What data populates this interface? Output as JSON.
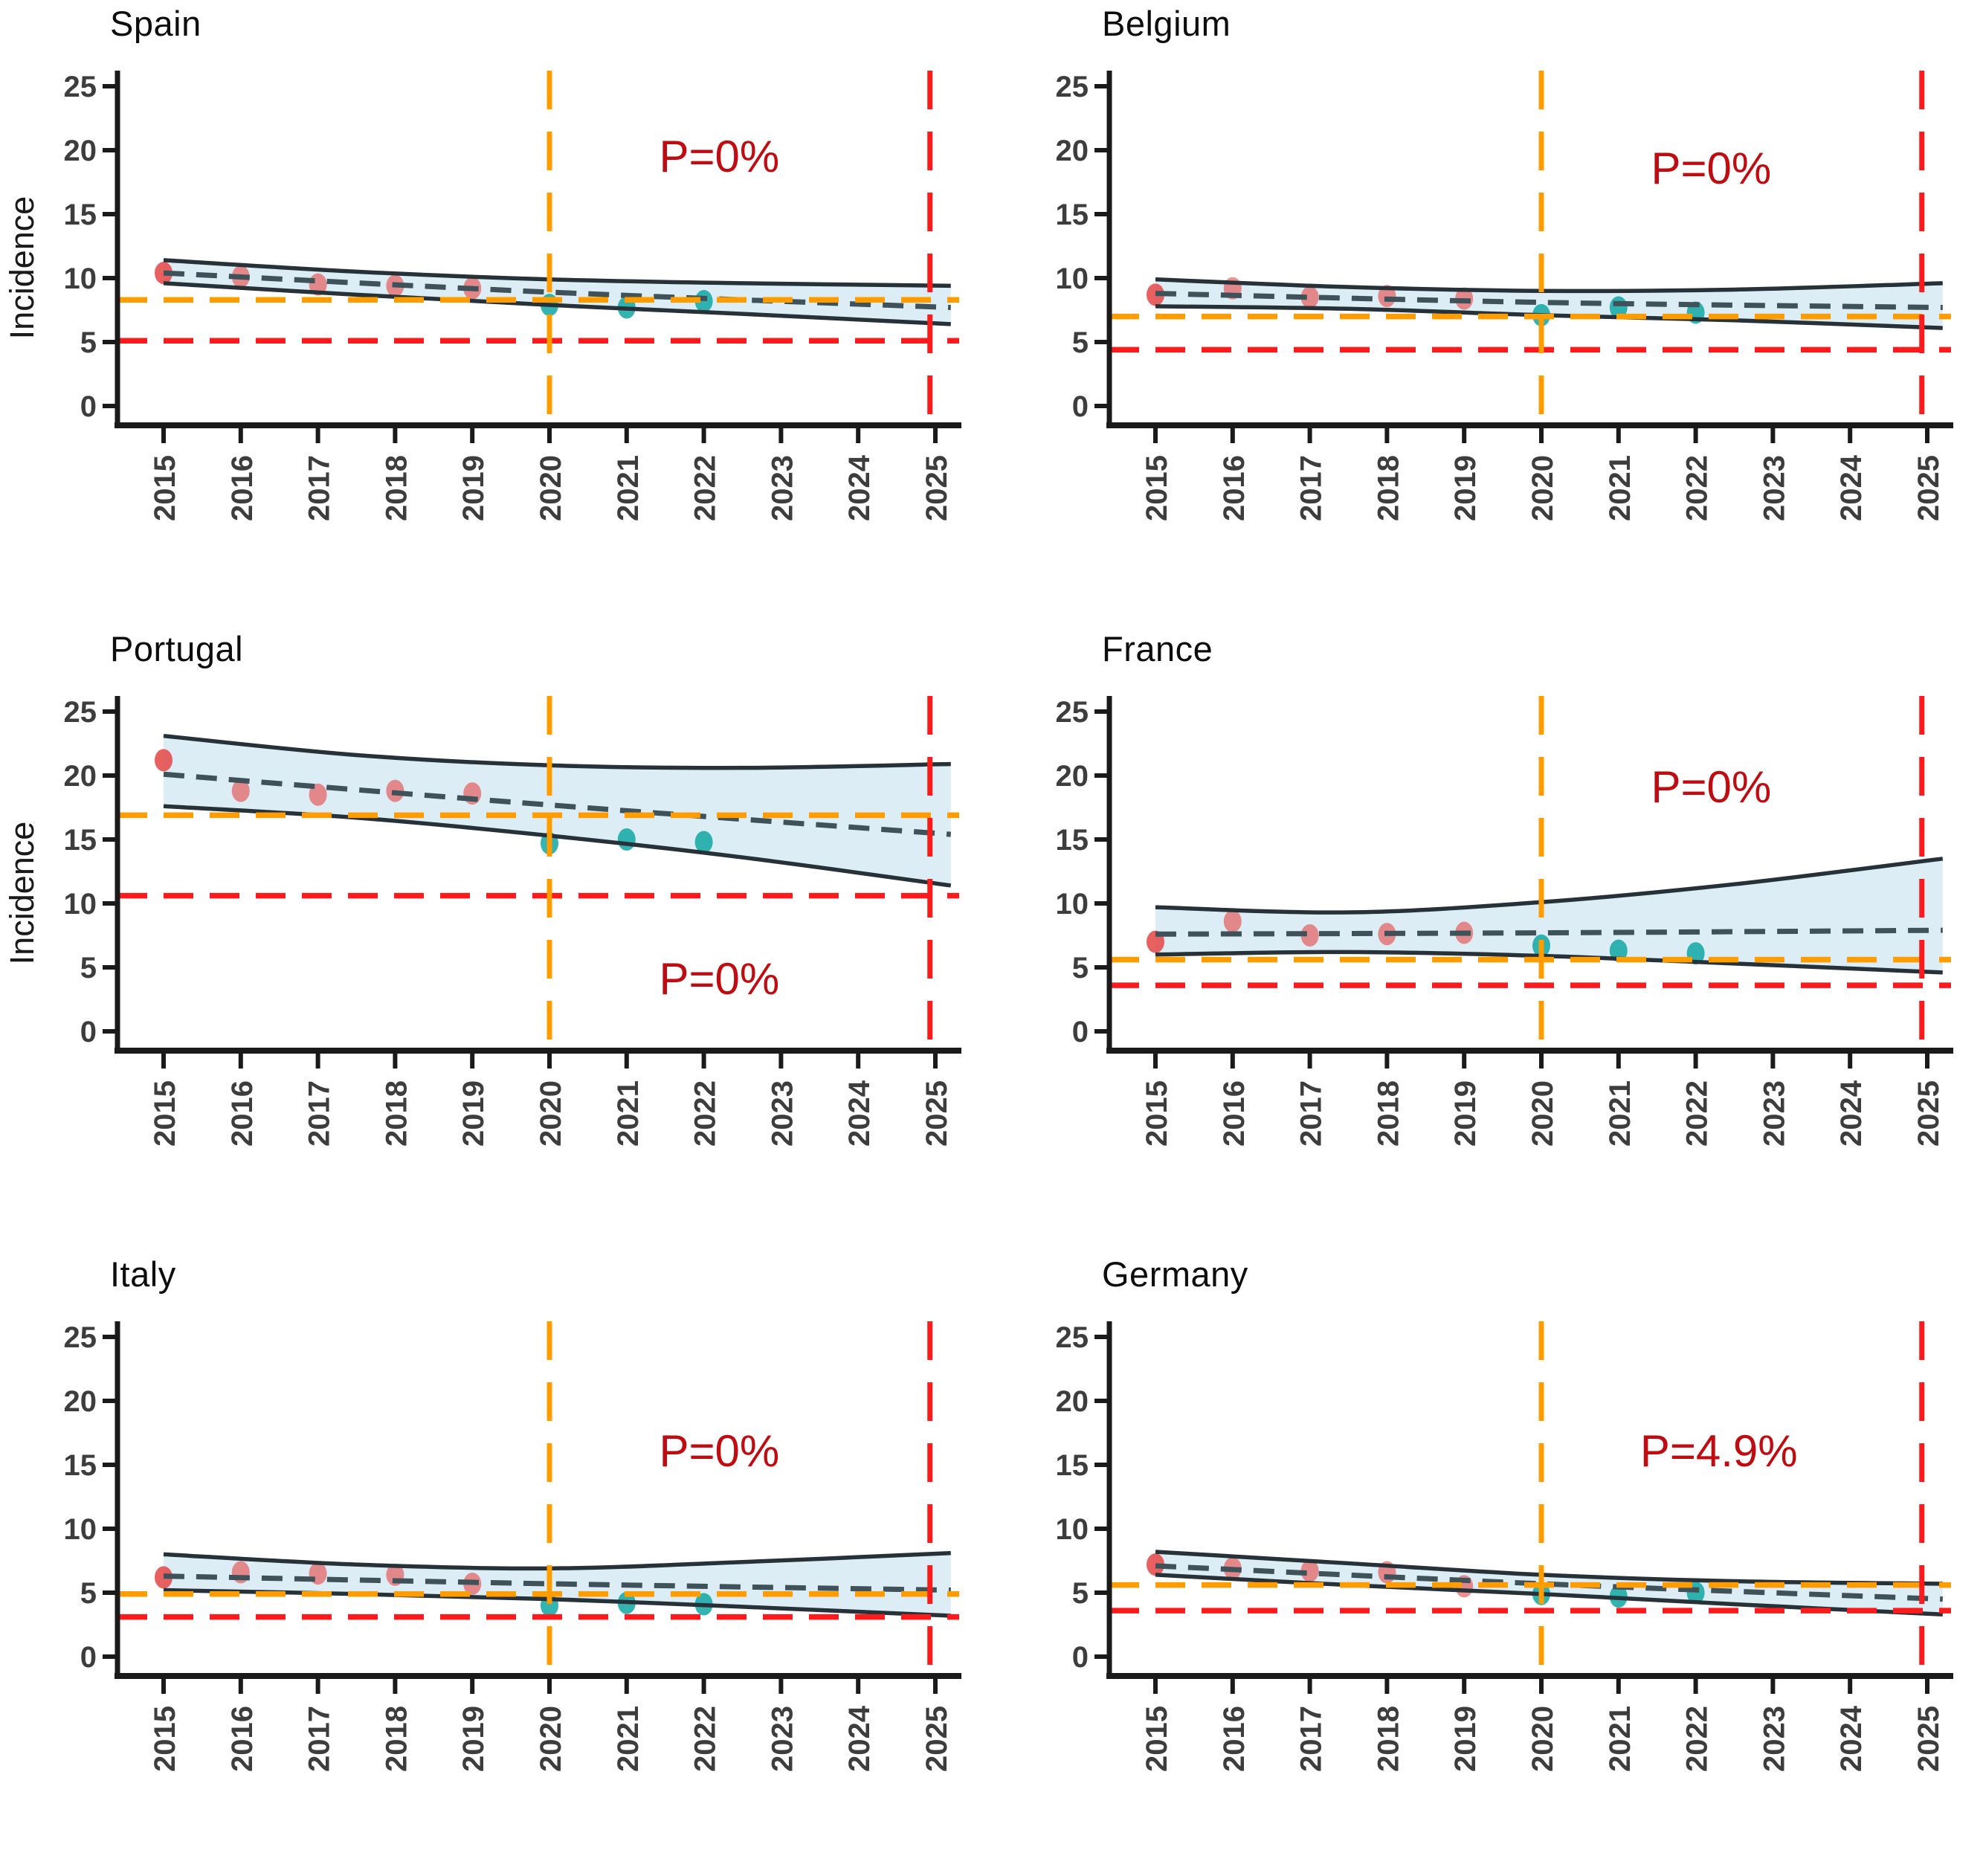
{
  "colors": {
    "pre2020_point_red": "#e54b4b",
    "post2020_point_teal": "#17aaa5",
    "band_fill_lightblue": "#dcedf5",
    "band_edge_dark": "#263238",
    "trend_dash_dark": "#3f5259",
    "orange_ref_line": "#ff9c00",
    "red_ref_line": "#fb1b1c",
    "p_label_darkred": "#c00c11",
    "axis_black": "#1a1a1a",
    "tick_text_gray": "#3d3d3d"
  },
  "axes": {
    "ylabel": "Incidence",
    "y_ticks": [
      0,
      5,
      10,
      15,
      20,
      25
    ],
    "x_ticks": [
      2015,
      2016,
      2017,
      2018,
      2019,
      2020,
      2021,
      2022,
      2023,
      2024,
      2025
    ],
    "ylim": [
      0,
      26
    ],
    "xlim": [
      2014.4,
      2025.3
    ],
    "grid": "off",
    "legend": "none"
  },
  "chart_data": [
    {
      "type": "line",
      "title": "Spain",
      "ylabel": "Incidence",
      "p_label": "P=0%",
      "p_pos": {
        "year": 2022.2,
        "value": 19.4
      },
      "series": [
        {
          "name": "observed-2015-2019",
          "color": "pre2020_point_red",
          "x": [
            2015,
            2016,
            2017,
            2018,
            2019
          ],
          "y": [
            10.4,
            10.1,
            9.5,
            9.4,
            9.2
          ]
        },
        {
          "name": "observed-2020-2022",
          "color": "post2020_point_teal",
          "x": [
            2020,
            2021,
            2022
          ],
          "y": [
            7.9,
            7.7,
            8.2
          ]
        }
      ],
      "trend": {
        "x": [
          2015,
          2020,
          2025.2
        ],
        "y": [
          10.4,
          8.9,
          7.7
        ]
      },
      "band": {
        "x": [
          2015,
          2017.5,
          2020,
          2022.5,
          2025.2
        ],
        "upper": [
          11.4,
          10.5,
          9.9,
          9.6,
          9.4
        ],
        "lower": [
          9.6,
          8.7,
          7.9,
          7.2,
          6.4
        ]
      },
      "ref_lines": {
        "orange_h": 8.3,
        "red_h": 5.1,
        "orange_v": 2020,
        "red_v": 2024.93
      }
    },
    {
      "type": "line",
      "title": "Belgium",
      "ylabel": "",
      "p_label": "P=0%",
      "p_pos": {
        "year": 2022.2,
        "value": 18.5
      },
      "series": [
        {
          "name": "observed-2015-2019",
          "color": "pre2020_point_red",
          "x": [
            2015,
            2016,
            2017,
            2018,
            2019
          ],
          "y": [
            8.7,
            9.2,
            8.5,
            8.6,
            8.4
          ]
        },
        {
          "name": "observed-2020-2022",
          "color": "post2020_point_teal",
          "x": [
            2020,
            2021,
            2022
          ],
          "y": [
            7.1,
            7.7,
            7.3
          ]
        }
      ],
      "trend": {
        "x": [
          2015,
          2020,
          2025.2
        ],
        "y": [
          8.8,
          8.1,
          7.7
        ]
      },
      "band": {
        "x": [
          2015,
          2017.5,
          2020,
          2022.5,
          2025.2
        ],
        "upper": [
          9.9,
          9.3,
          9.0,
          9.1,
          9.6
        ],
        "lower": [
          7.8,
          7.6,
          7.1,
          6.7,
          6.1
        ]
      },
      "ref_lines": {
        "orange_h": 7.0,
        "red_h": 4.4,
        "orange_v": 2020,
        "red_v": 2024.93
      }
    },
    {
      "type": "line",
      "title": "Portugal",
      "ylabel": "Incidence",
      "p_label": "P=0%",
      "p_pos": {
        "year": 2022.2,
        "value": 4.0
      },
      "series": [
        {
          "name": "observed-2015-2019",
          "color": "pre2020_point_red",
          "x": [
            2015,
            2016,
            2017,
            2018,
            2019
          ],
          "y": [
            21.2,
            18.8,
            18.5,
            18.8,
            18.6
          ]
        },
        {
          "name": "observed-2020-2022",
          "color": "post2020_point_teal",
          "x": [
            2020,
            2021,
            2022
          ],
          "y": [
            14.7,
            15.0,
            14.8
          ]
        }
      ],
      "trend": {
        "x": [
          2015,
          2020,
          2025.2
        ],
        "y": [
          20.1,
          17.7,
          15.4
        ]
      },
      "band": {
        "x": [
          2015,
          2017.5,
          2020,
          2022.5,
          2025.2
        ],
        "upper": [
          23.1,
          21.6,
          20.8,
          20.6,
          20.9
        ],
        "lower": [
          17.6,
          16.7,
          15.3,
          13.6,
          11.4
        ]
      },
      "ref_lines": {
        "orange_h": 16.9,
        "red_h": 10.6,
        "orange_v": 2020,
        "red_v": 2024.93
      }
    },
    {
      "type": "line",
      "title": "France",
      "ylabel": "",
      "p_label": "P=0%",
      "p_pos": {
        "year": 2022.2,
        "value": 19.0
      },
      "series": [
        {
          "name": "observed-2015-2019",
          "color": "pre2020_point_red",
          "x": [
            2015,
            2016,
            2017,
            2018,
            2019
          ],
          "y": [
            7.0,
            8.6,
            7.5,
            7.6,
            7.7
          ]
        },
        {
          "name": "observed-2020-2022",
          "color": "post2020_point_teal",
          "x": [
            2020,
            2021,
            2022
          ],
          "y": [
            6.7,
            6.3,
            6.1
          ]
        }
      ],
      "trend": {
        "x": [
          2015,
          2020,
          2025.2
        ],
        "y": [
          7.6,
          7.7,
          7.9
        ]
      },
      "band": {
        "x": [
          2015,
          2017.5,
          2020,
          2022.5,
          2025.2
        ],
        "upper": [
          9.7,
          9.3,
          10.1,
          11.5,
          13.5
        ],
        "lower": [
          6.0,
          6.2,
          5.9,
          5.3,
          4.6
        ]
      },
      "ref_lines": {
        "orange_h": 5.6,
        "red_h": 3.6,
        "orange_v": 2020,
        "red_v": 2024.93
      }
    },
    {
      "type": "line",
      "title": "Italy",
      "ylabel": "",
      "p_label": "P=0%",
      "p_pos": {
        "year": 2022.2,
        "value": 16.0
      },
      "series": [
        {
          "name": "observed-2015-2019",
          "color": "pre2020_point_red",
          "x": [
            2015,
            2016,
            2017,
            2018,
            2019
          ],
          "y": [
            6.2,
            6.6,
            6.5,
            6.4,
            5.7
          ]
        },
        {
          "name": "observed-2020-2022",
          "color": "post2020_point_teal",
          "x": [
            2020,
            2021,
            2022
          ],
          "y": [
            4.0,
            4.2,
            4.1
          ]
        }
      ],
      "trend": {
        "x": [
          2015,
          2020,
          2025.2
        ],
        "y": [
          6.3,
          5.7,
          5.2
        ]
      },
      "band": {
        "x": [
          2015,
          2017.5,
          2020,
          2022.5,
          2025.2
        ],
        "upper": [
          8.0,
          7.2,
          6.9,
          7.4,
          8.1
        ],
        "lower": [
          5.2,
          4.9,
          4.5,
          3.9,
          3.2
        ]
      },
      "ref_lines": {
        "orange_h": 4.9,
        "red_h": 3.1,
        "orange_v": 2020,
        "red_v": 2024.93
      }
    },
    {
      "type": "line",
      "title": "Germany",
      "ylabel": "",
      "p_label": "P=4.9%",
      "p_pos": {
        "year": 2022.3,
        "value": 16.0
      },
      "series": [
        {
          "name": "observed-2015-2019",
          "color": "pre2020_point_red",
          "x": [
            2015,
            2016,
            2017,
            2018,
            2019
          ],
          "y": [
            7.2,
            6.9,
            6.7,
            6.6,
            5.5
          ]
        },
        {
          "name": "observed-2020-2022",
          "color": "post2020_point_teal",
          "x": [
            2020,
            2021,
            2022
          ],
          "y": [
            4.9,
            4.7,
            5.0
          ]
        }
      ],
      "trend": {
        "x": [
          2015,
          2020,
          2025.2
        ],
        "y": [
          7.1,
          5.7,
          4.5
        ]
      },
      "band": {
        "x": [
          2015,
          2017.5,
          2020,
          2022.5,
          2025.2
        ],
        "upper": [
          8.2,
          7.3,
          6.4,
          5.9,
          5.7
        ],
        "lower": [
          6.4,
          5.6,
          4.9,
          4.1,
          3.3
        ]
      },
      "ref_lines": {
        "orange_h": 5.6,
        "red_h": 3.6,
        "orange_v": 2020,
        "red_v": 2024.93
      }
    }
  ]
}
